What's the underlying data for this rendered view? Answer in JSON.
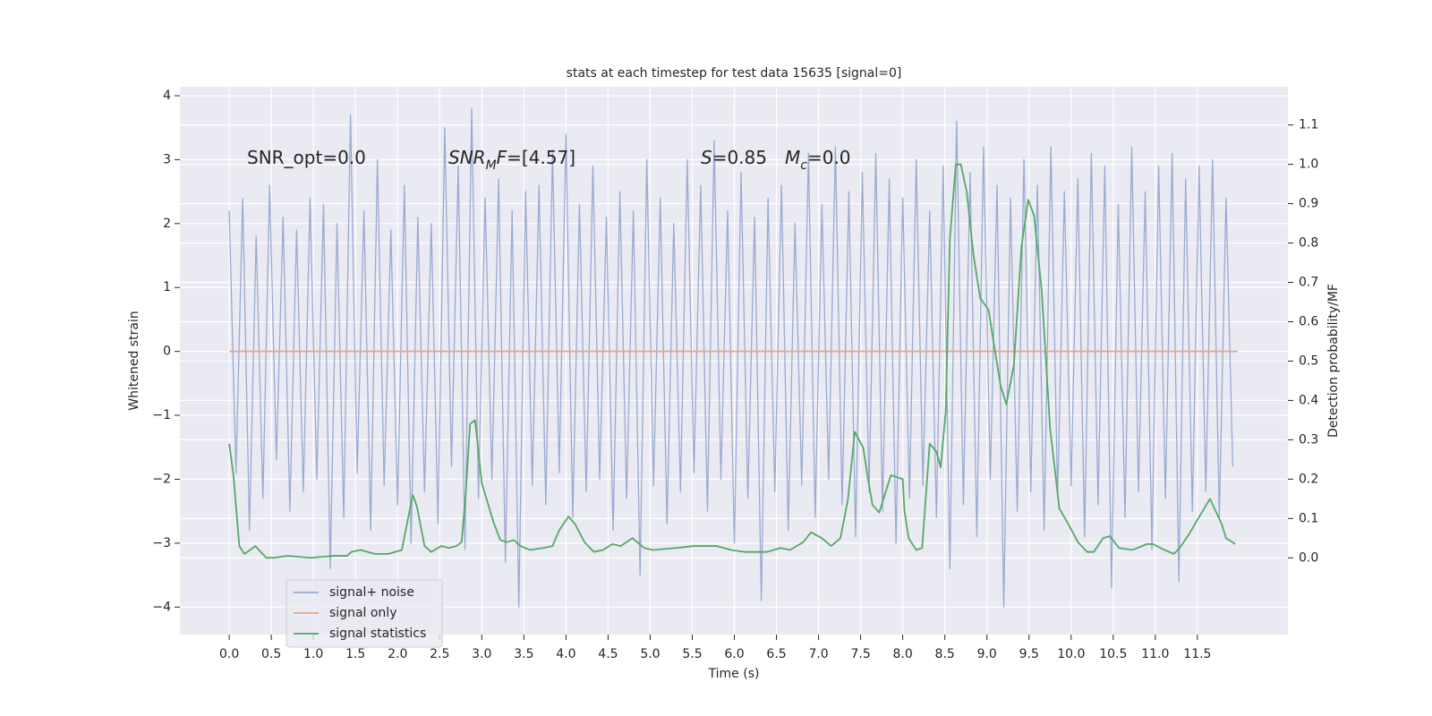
{
  "chart_data": {
    "type": "line",
    "title": "stats at each timestep for test data 15635 [signal=0]",
    "xlabel": "Time (s)",
    "ylabel": "Whitened strain",
    "y2label": "Detection probability/MF",
    "xlim": [
      -0.586,
      12.575
    ],
    "ylim": [
      -4.43,
      4.14
    ],
    "y2lim": [
      -0.195,
      1.197
    ],
    "xticks": [
      {
        "value": 0,
        "label": "0.0"
      },
      0.5,
      {
        "value": 1,
        "label": "1.0"
      },
      1.5,
      {
        "value": 2,
        "label": "2.0"
      },
      2.5,
      {
        "value": 3,
        "label": "3.0"
      },
      3.5,
      {
        "value": 4,
        "label": "4.0"
      },
      4.5,
      {
        "value": 5,
        "label": "5.0"
      },
      5.5,
      {
        "value": 6,
        "label": "6.0"
      },
      6.5,
      {
        "value": 7,
        "label": "7.0"
      },
      7.5,
      {
        "value": 8,
        "label": "8.0"
      },
      8.5,
      {
        "value": 9,
        "label": "9.0"
      },
      9.5,
      {
        "value": 10,
        "label": "10.0"
      },
      10.5,
      {
        "value": 11,
        "label": "11.0"
      },
      11.5
    ],
    "yticks": [
      {
        "value": -4,
        "label": "−4"
      },
      {
        "value": -3,
        "label": "−3"
      },
      {
        "value": -2,
        "label": "−2"
      },
      {
        "value": -1,
        "label": "−1"
      },
      0,
      1,
      2,
      3,
      4
    ],
    "y2ticks": [
      {
        "value": 0,
        "label": "0.0"
      },
      0.1,
      0.2,
      0.3,
      0.4,
      0.5,
      0.6,
      0.7,
      0.8,
      0.9,
      {
        "value": 1,
        "label": "1.0"
      },
      1.1
    ],
    "grid": true,
    "legend": "lower left",
    "annotations": [
      [
        {
          "text": "SNR_opt=0.0"
        }
      ],
      [
        {
          "text": "SNR",
          "italic": true
        },
        {
          "text": "M",
          "italic": true,
          "sub": true
        },
        {
          "text": "F",
          "italic": true
        },
        {
          "text": "=[4.57]"
        }
      ],
      [
        {
          "text": "S",
          "italic": true
        },
        {
          "text": "=0.85"
        }
      ],
      [
        {
          "text": "M",
          "italic": true
        },
        {
          "text": "c",
          "italic": true,
          "sub": true
        },
        {
          "text": "=0.0"
        }
      ]
    ],
    "series": [
      {
        "name": "signal+ noise",
        "color": "#9aaad0",
        "axis": "y",
        "x": [
          0,
          0.08,
          0.16,
          0.24,
          0.32,
          0.4,
          0.48,
          0.56,
          0.64,
          0.72,
          0.8,
          0.88,
          0.96,
          1.04,
          1.12,
          1.2,
          1.28,
          1.36,
          1.44,
          1.52,
          1.6,
          1.68,
          1.76,
          1.84,
          1.92,
          2,
          2.08,
          2.16,
          2.24,
          2.32,
          2.4,
          2.48,
          2.56,
          2.64,
          2.72,
          2.8,
          2.88,
          2.96,
          3.04,
          3.12,
          3.2,
          3.28,
          3.36,
          3.44,
          3.52,
          3.6,
          3.68,
          3.76,
          3.84,
          3.92,
          4,
          4.08,
          4.16,
          4.24,
          4.32,
          4.4,
          4.48,
          4.56,
          4.64,
          4.72,
          4.8,
          4.88,
          4.96,
          5.04,
          5.12,
          5.2,
          5.28,
          5.36,
          5.44,
          5.52,
          5.6,
          5.68,
          5.76,
          5.84,
          5.92,
          6,
          6.08,
          6.16,
          6.24,
          6.32,
          6.4,
          6.48,
          6.56,
          6.64,
          6.72,
          6.8,
          6.88,
          6.96,
          7.04,
          7.12,
          7.2,
          7.28,
          7.36,
          7.44,
          7.52,
          7.6,
          7.68,
          7.76,
          7.84,
          7.92,
          8,
          8.08,
          8.16,
          8.24,
          8.32,
          8.4,
          8.48,
          8.56,
          8.64,
          8.72,
          8.8,
          8.88,
          8.96,
          9.04,
          9.12,
          9.2,
          9.28,
          9.36,
          9.44,
          9.52,
          9.6,
          9.68,
          9.76,
          9.84,
          9.92,
          10,
          10.08,
          10.16,
          10.24,
          10.32,
          10.4,
          10.48,
          10.56,
          10.64,
          10.72,
          10.8,
          10.88,
          10.96,
          11.04,
          11.12,
          11.2,
          11.28,
          11.36,
          11.44,
          11.52,
          11.6,
          11.68,
          11.76,
          11.84,
          11.92
        ],
        "values": [
          2.2,
          -1.9,
          2.4,
          -2.8,
          1.8,
          -2.3,
          2.6,
          -1.7,
          2.1,
          -2.5,
          1.9,
          -2.2,
          2.4,
          -2.0,
          2.3,
          -3.4,
          2.0,
          -2.6,
          3.7,
          -1.9,
          2.2,
          -2.8,
          3.0,
          -2.1,
          1.9,
          -2.4,
          2.6,
          -3.0,
          2.1,
          -2.2,
          2.0,
          -2.7,
          3.5,
          -1.8,
          2.9,
          -3.1,
          3.8,
          -2.3,
          2.4,
          -2.0,
          2.7,
          -3.3,
          2.2,
          -4.0,
          2.5,
          -2.1,
          2.6,
          -2.4,
          3.1,
          -1.9,
          3.4,
          -2.6,
          2.3,
          -2.2,
          2.9,
          -2.0,
          2.1,
          -2.8,
          2.5,
          -2.3,
          2.2,
          -3.5,
          3.0,
          -2.1,
          2.4,
          -2.7,
          2.0,
          -2.2,
          3.0,
          -1.9,
          2.6,
          -2.5,
          3.3,
          -2.0,
          2.2,
          -3.0,
          2.8,
          -2.3,
          2.1,
          -3.9,
          2.4,
          -2.2,
          2.6,
          -2.8,
          2.0,
          -2.1,
          3.1,
          -2.6,
          2.3,
          -2.0,
          3.2,
          -2.4,
          2.5,
          -2.9,
          2.8,
          -2.2,
          3.1,
          -2.5,
          2.7,
          -3.0,
          2.4,
          -2.3,
          3.0,
          -2.1,
          2.2,
          -2.6,
          2.9,
          -3.4,
          3.6,
          -2.4,
          2.8,
          -2.9,
          3.2,
          -2.0,
          2.6,
          -4.0,
          2.4,
          -2.5,
          3.0,
          -2.2,
          2.6,
          -2.8,
          3.2,
          -2.3,
          2.5,
          -2.1,
          2.7,
          -2.9,
          3.1,
          -2.4,
          2.9,
          -3.7,
          2.3,
          -2.6,
          3.2,
          -2.2,
          2.5,
          -3.1,
          2.9,
          -2.3,
          3.1,
          -3.6,
          2.7,
          -2.5,
          2.9,
          -2.2,
          3.0,
          -2.6,
          2.4,
          -1.8
        ]
      },
      {
        "name": "signal only",
        "color": "#e6a88a",
        "axis": "y",
        "x": [
          0,
          11.98
        ],
        "values": [
          0,
          0
        ]
      },
      {
        "name": "signal statistics",
        "color": "#55a868",
        "axis": "y2",
        "x": [
          0,
          0.05,
          0.12,
          0.18,
          0.25,
          0.31,
          0.44,
          0.53,
          0.69,
          0.97,
          1.24,
          1.4,
          1.45,
          1.56,
          1.73,
          1.89,
          2.05,
          2.18,
          2.23,
          2.32,
          2.4,
          2.52,
          2.61,
          2.7,
          2.76,
          2.81,
          2.86,
          2.92,
          3.0,
          3.14,
          3.22,
          3.3,
          3.38,
          3.46,
          3.57,
          3.73,
          3.84,
          3.92,
          4.03,
          4.11,
          4.22,
          4.33,
          4.44,
          4.55,
          4.65,
          4.79,
          4.93,
          5.03,
          5.31,
          5.52,
          5.79,
          5.96,
          6.12,
          6.39,
          6.55,
          6.66,
          6.82,
          6.91,
          7.04,
          7.15,
          7.26,
          7.35,
          7.43,
          7.53,
          7.58,
          7.64,
          7.72,
          7.86,
          8.0,
          8.02,
          8.07,
          8.16,
          8.23,
          8.32,
          8.4,
          8.45,
          8.51,
          8.56,
          8.63,
          8.69,
          8.76,
          8.84,
          8.92,
          9.02,
          9.07,
          9.16,
          9.23,
          9.32,
          9.41,
          9.49,
          9.56,
          9.65,
          9.75,
          9.86,
          9.97,
          10.08,
          10.19,
          10.27,
          10.38,
          10.46,
          10.57,
          10.73,
          10.9,
          10.97,
          11.11,
          11.22,
          11.29,
          11.4,
          11.51,
          11.65,
          11.79,
          11.84,
          11.95
        ],
        "values": [
          0.29,
          0.21,
          0.03,
          0.01,
          0.02,
          0.03,
          0.0,
          0.0,
          0.005,
          0.0,
          0.005,
          0.005,
          0.015,
          0.02,
          0.01,
          0.01,
          0.02,
          0.16,
          0.13,
          0.03,
          0.015,
          0.03,
          0.025,
          0.03,
          0.04,
          0.165,
          0.34,
          0.35,
          0.19,
          0.09,
          0.045,
          0.04,
          0.045,
          0.03,
          0.02,
          0.025,
          0.03,
          0.07,
          0.105,
          0.085,
          0.04,
          0.015,
          0.02,
          0.035,
          0.03,
          0.05,
          0.025,
          0.02,
          0.025,
          0.03,
          0.03,
          0.02,
          0.015,
          0.015,
          0.025,
          0.02,
          0.04,
          0.065,
          0.05,
          0.03,
          0.05,
          0.15,
          0.32,
          0.28,
          0.21,
          0.135,
          0.115,
          0.21,
          0.2,
          0.12,
          0.05,
          0.02,
          0.025,
          0.29,
          0.27,
          0.23,
          0.37,
          0.81,
          1.0,
          1.0,
          0.93,
          0.77,
          0.66,
          0.63,
          0.56,
          0.44,
          0.39,
          0.49,
          0.79,
          0.91,
          0.87,
          0.68,
          0.33,
          0.125,
          0.085,
          0.04,
          0.015,
          0.015,
          0.05,
          0.055,
          0.025,
          0.02,
          0.035,
          0.035,
          0.02,
          0.01,
          0.025,
          0.06,
          0.1,
          0.15,
          0.085,
          0.05,
          0.035
        ]
      }
    ]
  }
}
